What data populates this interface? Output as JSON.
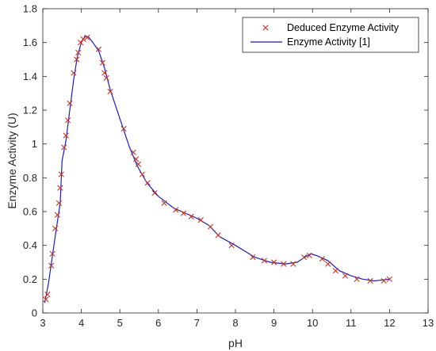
{
  "chart_data": {
    "type": "line",
    "title": "",
    "xlabel": "pH",
    "ylabel": "Enzyme Activity (U)",
    "xlim": [
      3,
      13
    ],
    "ylim": [
      0,
      1.8
    ],
    "xticks": [
      3,
      4,
      5,
      6,
      7,
      8,
      9,
      10,
      11,
      12,
      13
    ],
    "yticks": [
      0,
      0.2,
      0.4,
      0.6,
      0.8,
      1,
      1.2,
      1.4,
      1.6,
      1.8
    ],
    "xtick_labels": [
      "3",
      "4",
      "5",
      "6",
      "7",
      "8",
      "9",
      "10",
      "11",
      "12",
      "13"
    ],
    "ytick_labels": [
      "0",
      "0.2",
      "0.4",
      "0.6",
      "0.8",
      "1",
      "1.2",
      "1.4",
      "1.6",
      "1.8"
    ],
    "grid": false,
    "legend_position": "top-right",
    "series": [
      {
        "name": "Deduced Enzyme Activity",
        "style": "marker-x",
        "color": "#c0392b",
        "x": [
          3.08,
          3.12,
          3.22,
          3.25,
          3.32,
          3.38,
          3.42,
          3.45,
          3.48,
          3.55,
          3.6,
          3.65,
          3.7,
          3.8,
          3.88,
          3.92,
          3.98,
          4.05,
          4.15,
          4.45,
          4.55,
          4.6,
          4.65,
          4.75,
          5.1,
          5.35,
          5.42,
          5.48,
          5.58,
          5.72,
          5.9,
          6.15,
          6.45,
          6.65,
          6.85,
          7.1,
          7.35,
          7.55,
          7.9,
          8.45,
          8.75,
          9.0,
          9.25,
          9.5,
          9.78,
          9.92,
          10.25,
          10.4,
          10.6,
          10.85,
          11.15,
          11.5,
          11.85,
          12.0
        ],
        "y": [
          0.08,
          0.11,
          0.28,
          0.35,
          0.5,
          0.58,
          0.65,
          0.74,
          0.82,
          0.98,
          1.05,
          1.14,
          1.24,
          1.42,
          1.5,
          1.54,
          1.6,
          1.62,
          1.63,
          1.56,
          1.48,
          1.42,
          1.39,
          1.31,
          1.09,
          0.95,
          0.91,
          0.88,
          0.82,
          0.77,
          0.71,
          0.65,
          0.61,
          0.59,
          0.57,
          0.55,
          0.51,
          0.46,
          0.4,
          0.33,
          0.31,
          0.3,
          0.29,
          0.29,
          0.33,
          0.34,
          0.32,
          0.29,
          0.25,
          0.22,
          0.2,
          0.19,
          0.19,
          0.2
        ]
      },
      {
        "name": "Enzyme Activity [1]",
        "style": "line",
        "color": "#1f1fb4",
        "x": [
          3.05,
          3.15,
          3.3,
          3.45,
          3.5,
          3.6,
          3.7,
          3.8,
          3.9,
          4.0,
          4.1,
          4.2,
          4.3,
          4.45,
          4.6,
          4.75,
          5.0,
          5.25,
          5.45,
          5.7,
          6.0,
          6.4,
          6.7,
          7.0,
          7.3,
          7.6,
          8.0,
          8.5,
          8.9,
          9.3,
          9.6,
          9.8,
          9.95,
          10.1,
          10.4,
          10.7,
          11.0,
          11.3,
          11.6,
          12.0
        ],
        "y": [
          0.06,
          0.18,
          0.42,
          0.65,
          0.9,
          1.02,
          1.2,
          1.38,
          1.52,
          1.6,
          1.64,
          1.63,
          1.6,
          1.55,
          1.45,
          1.32,
          1.15,
          0.98,
          0.87,
          0.77,
          0.69,
          0.62,
          0.59,
          0.56,
          0.52,
          0.45,
          0.4,
          0.33,
          0.3,
          0.29,
          0.3,
          0.33,
          0.35,
          0.34,
          0.31,
          0.25,
          0.22,
          0.2,
          0.19,
          0.2
        ]
      }
    ]
  }
}
